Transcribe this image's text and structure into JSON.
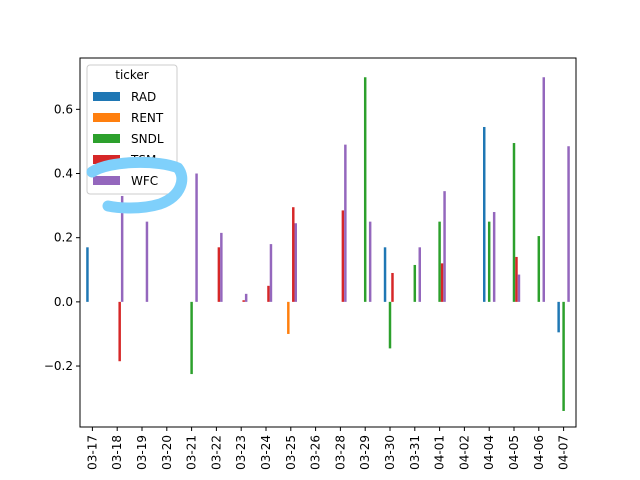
{
  "chart_data": {
    "type": "bar",
    "categories": [
      "03-17",
      "03-18",
      "03-19",
      "03-20",
      "03-21",
      "03-22",
      "03-23",
      "03-24",
      "03-25",
      "03-26",
      "03-28",
      "03-29",
      "03-30",
      "03-31",
      "04-01",
      "04-02",
      "04-04",
      "04-05",
      "04-06",
      "04-07"
    ],
    "series": [
      {
        "name": "RAD",
        "color": "#1f77b4",
        "values": [
          0.17,
          0,
          0,
          0,
          0,
          0,
          0,
          0,
          0,
          0,
          0,
          0,
          0.17,
          0,
          0,
          0,
          0.545,
          0,
          0,
          -0.095
        ]
      },
      {
        "name": "RENT",
        "color": "#ff7f0e",
        "values": [
          0,
          0,
          0,
          0,
          0,
          0,
          0,
          0,
          -0.1,
          0,
          0,
          0,
          0,
          0,
          0,
          0,
          0,
          0,
          0,
          0
        ]
      },
      {
        "name": "SNDL",
        "color": "#2ca02c",
        "values": [
          0,
          0,
          0,
          0,
          -0.225,
          0,
          0,
          0,
          0,
          0,
          0,
          0.7,
          -0.145,
          0.115,
          0.25,
          0,
          0.25,
          0.495,
          0.205,
          -0.34
        ]
      },
      {
        "name": "TSM",
        "color": "#d62728",
        "values": [
          0,
          -0.185,
          0,
          0,
          0,
          0.17,
          0.005,
          0.05,
          0.295,
          0,
          0.285,
          0,
          0.09,
          0,
          0.12,
          0,
          0,
          0.14,
          0,
          0
        ]
      },
      {
        "name": "WFC",
        "color": "#9467bd",
        "values": [
          0,
          0.33,
          0.25,
          0,
          0.4,
          0.215,
          0.025,
          0.18,
          0.245,
          0,
          0.49,
          0.25,
          0,
          0.17,
          0.345,
          0,
          0.28,
          0.085,
          0.7,
          0.485
        ]
      }
    ],
    "ylim": [
      -0.39,
      0.76
    ],
    "yticks": [
      -0.2,
      0.0,
      0.2,
      0.4,
      0.6
    ],
    "ytick_labels": [
      "−0.2",
      "0.0",
      "0.2",
      "0.4",
      "0.6"
    ],
    "xlabel": "",
    "ylabel": "",
    "legend": {
      "title": "ticker",
      "placement": "top-left"
    },
    "grid": false,
    "annotation": {
      "type": "highlight-stroke",
      "color": "#7fd0fb"
    }
  }
}
